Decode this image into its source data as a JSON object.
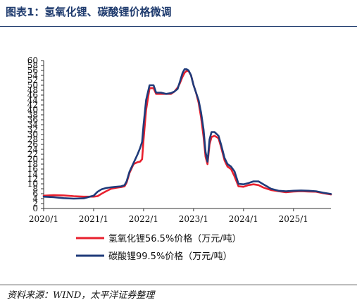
{
  "header": {
    "title": "图表1：氢氧化锂、碳酸锂价格微调"
  },
  "footer": {
    "source": "资料来源：WIND，太平洋证券整理"
  },
  "chart_data": {
    "type": "line",
    "title": "",
    "xlabel": "",
    "ylabel": "",
    "ylim": [
      0,
      60
    ],
    "yticks": [
      "0",
      "2",
      "4",
      "6",
      "8",
      "10",
      "12",
      "14",
      "16",
      "18",
      "20",
      "22",
      "24",
      "26",
      "28",
      "30",
      "32",
      "34",
      "36",
      "38",
      "40",
      "42",
      "44",
      "46",
      "48",
      "50",
      "52",
      "54",
      "56",
      "58",
      "60"
    ],
    "xticks": [
      "2020/1",
      "2021/1",
      "2022/1",
      "2023/1",
      "2024/1",
      "2025/1"
    ],
    "xlim": [
      2020.0,
      2025.75
    ],
    "grid": false,
    "legend": "bottom",
    "series": [
      {
        "name": "氢氧化锂56.5%价格（万元/吨）",
        "color": "#e8202e",
        "x": [
          2020.0,
          2020.2,
          2020.4,
          2020.6,
          2020.8,
          2021.0,
          2021.08,
          2021.16,
          2021.25,
          2021.35,
          2021.45,
          2021.55,
          2021.62,
          2021.66,
          2021.72,
          2021.8,
          2021.88,
          2021.93,
          2021.97,
          2022.0,
          2022.05,
          2022.12,
          2022.2,
          2022.25,
          2022.35,
          2022.45,
          2022.55,
          2022.62,
          2022.68,
          2022.72,
          2022.78,
          2022.82,
          2022.86,
          2022.9,
          2022.95,
          2023.0,
          2023.05,
          2023.1,
          2023.15,
          2023.2,
          2023.24,
          2023.28,
          2023.32,
          2023.36,
          2023.42,
          2023.5,
          2023.55,
          2023.62,
          2023.68,
          2023.75,
          2023.82,
          2023.9,
          2024.0,
          2024.1,
          2024.2,
          2024.3,
          2024.4,
          2024.55,
          2024.7,
          2024.85,
          2025.0,
          2025.15,
          2025.3,
          2025.45,
          2025.6,
          2025.75
        ],
        "values": [
          5.2,
          5.4,
          5.3,
          5.0,
          4.8,
          4.8,
          5.0,
          6.0,
          7.0,
          8.0,
          8.4,
          8.7,
          9.0,
          10.5,
          14.5,
          18.0,
          18.8,
          19.0,
          20.0,
          28.0,
          40.0,
          48.8,
          48.8,
          46.5,
          46.5,
          46.5,
          46.5,
          47.5,
          49.0,
          50.5,
          53.5,
          55.0,
          55.8,
          55.8,
          54.0,
          50.0,
          47.0,
          43.0,
          37.0,
          29.0,
          21.0,
          18.0,
          26.0,
          29.0,
          29.5,
          28.5,
          25.0,
          19.5,
          17.0,
          16.0,
          13.0,
          9.0,
          8.8,
          9.5,
          9.8,
          9.5,
          8.5,
          7.5,
          7.0,
          6.6,
          6.9,
          7.0,
          6.9,
          6.8,
          6.2,
          5.7
        ]
      },
      {
        "name": "碳酸锂99.5%价格（万元/吨）",
        "color": "#1f3b7a",
        "x": [
          2020.0,
          2020.2,
          2020.4,
          2020.6,
          2020.8,
          2021.0,
          2021.08,
          2021.16,
          2021.25,
          2021.35,
          2021.45,
          2021.55,
          2021.62,
          2021.66,
          2021.72,
          2021.8,
          2021.88,
          2021.93,
          2021.97,
          2022.0,
          2022.05,
          2022.12,
          2022.2,
          2022.25,
          2022.35,
          2022.45,
          2022.55,
          2022.62,
          2022.68,
          2022.72,
          2022.78,
          2022.82,
          2022.86,
          2022.9,
          2022.95,
          2023.0,
          2023.05,
          2023.1,
          2023.15,
          2023.2,
          2023.24,
          2023.28,
          2023.32,
          2023.36,
          2023.42,
          2023.5,
          2023.55,
          2023.62,
          2023.68,
          2023.75,
          2023.82,
          2023.9,
          2024.0,
          2024.1,
          2024.2,
          2024.3,
          2024.4,
          2024.55,
          2024.7,
          2024.85,
          2025.0,
          2025.15,
          2025.3,
          2025.45,
          2025.6,
          2025.75
        ],
        "values": [
          4.8,
          4.6,
          4.2,
          4.0,
          4.1,
          5.2,
          6.8,
          7.8,
          8.3,
          8.6,
          8.8,
          9.0,
          9.5,
          11.0,
          15.0,
          18.5,
          22.0,
          24.5,
          27.0,
          34.0,
          44.0,
          50.0,
          50.0,
          47.0,
          47.0,
          46.5,
          46.8,
          47.5,
          48.5,
          51.0,
          55.0,
          56.5,
          56.5,
          56.0,
          54.0,
          50.0,
          47.0,
          44.0,
          39.0,
          32.0,
          23.0,
          19.0,
          28.0,
          31.0,
          31.0,
          29.5,
          26.0,
          20.5,
          18.0,
          17.0,
          15.0,
          10.0,
          9.8,
          10.3,
          11.0,
          11.0,
          9.8,
          8.0,
          7.2,
          7.0,
          7.2,
          7.3,
          7.2,
          7.0,
          6.4,
          5.9
        ]
      }
    ]
  }
}
